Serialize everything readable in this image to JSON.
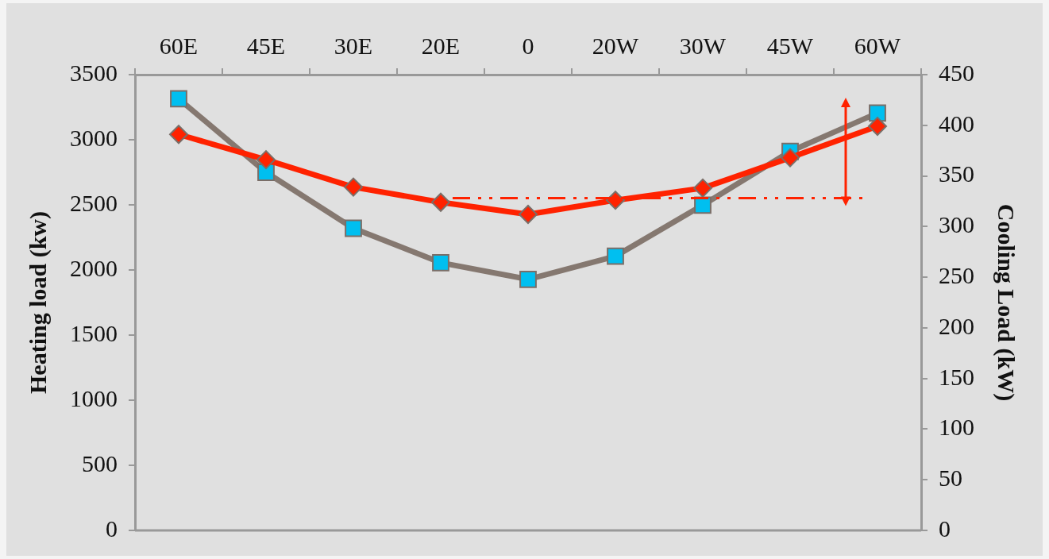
{
  "chart_data": {
    "type": "line",
    "xlabel": null,
    "ylabel": "Heating load (kw)",
    "y2label": "Cooling Load (kW)",
    "categories": [
      "60E",
      "45E",
      "30E",
      "20E",
      "0",
      "20W",
      "30W",
      "45W",
      "60W"
    ],
    "series": [
      {
        "color": "#857870",
        "colors": [
          "#00bff0",
          "#00bff0",
          "#00bff0",
          "#00bff0",
          "#00bff0",
          "#00bff0",
          "#00bff0",
          "#00bff0",
          "#00bff0"
        ],
        "marker": "square",
        "values": [
          3315,
          2750,
          2320,
          2056,
          1928,
          2106,
          2498,
          2910,
          3205
        ]
      },
      {
        "axis": "y2",
        "color": "#ff2200",
        "marker": "diamond",
        "values": [
          391,
          366,
          339,
          324,
          312,
          326,
          338,
          368,
          399
        ]
      }
    ],
    "ylim": [
      0,
      3500
    ],
    "yticks": [
      0,
      500,
      1000,
      1500,
      2000,
      2500,
      3000,
      3500
    ],
    "y2lim": [
      0,
      450
    ],
    "y2ticks": [
      0,
      50,
      100,
      150,
      200,
      250,
      300,
      350,
      400,
      450
    ],
    "ref_lines": [
      {
        "axis": "y2",
        "value": 328,
        "color": "#ff2200",
        "line_style": "dashed"
      }
    ],
    "grid": false,
    "legend": false
  }
}
